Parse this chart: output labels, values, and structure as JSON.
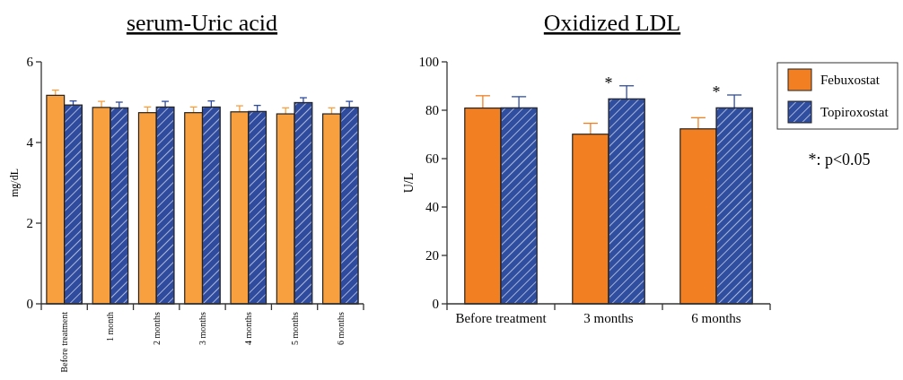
{
  "chart_data": [
    {
      "type": "bar",
      "title": "serum-Uric acid",
      "ylabel": "mg/dL",
      "categories": [
        "Before treatment",
        "1 month",
        "2 months",
        "3 months",
        "4 months",
        "5 months",
        "6 months"
      ],
      "series": [
        {
          "color": "#f8a040",
          "values": [
            5.17,
            4.87,
            4.74,
            4.74,
            4.76,
            4.71,
            4.71
          ],
          "errors": [
            0.13,
            0.15,
            0.14,
            0.14,
            0.15,
            0.15,
            0.15
          ]
        },
        {
          "color": "#2f4b9e",
          "values": [
            4.93,
            4.86,
            4.88,
            4.88,
            4.77,
            4.99,
            4.87
          ],
          "errors": [
            0.1,
            0.14,
            0.14,
            0.15,
            0.15,
            0.12,
            0.15
          ]
        }
      ],
      "ylim": [
        0,
        6
      ],
      "yticks": [
        0,
        2,
        4,
        6
      ],
      "grid": false,
      "legend": false
    },
    {
      "type": "bar",
      "title": "Oxidized LDL",
      "ylabel": "U/L",
      "categories": [
        "Before treatment",
        "3 months",
        "6 months"
      ],
      "series": [
        {
          "name": "Febuxostat",
          "color": "#f28022",
          "values": [
            80.9,
            70.1,
            72.3
          ],
          "errors": [
            5.1,
            4.5,
            4.6
          ]
        },
        {
          "name": "Topiroxostat",
          "color": "#2f4ea0",
          "values": [
            81,
            84.7,
            81
          ],
          "errors": [
            4.6,
            5.4,
            5.3
          ]
        }
      ],
      "ylim": [
        0,
        100
      ],
      "yticks": [
        0,
        20,
        40,
        60,
        80,
        100
      ],
      "grid": false,
      "legend": "right",
      "annotations": [
        {
          "text": "*",
          "x": "3 months",
          "y": 84.7
        },
        {
          "text": "*",
          "x": "6 months",
          "y": 81
        },
        "*: p<0.05"
      ]
    }
  ]
}
